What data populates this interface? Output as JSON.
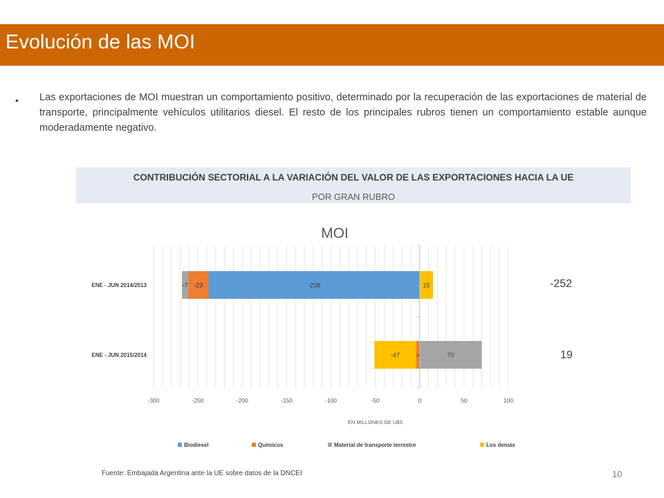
{
  "header": {
    "title": "Evolución de las MOI"
  },
  "body": {
    "bullet": "•",
    "paragraph": "Las exportaciones de MOI muestran un comportamiento positivo, determinado por la recuperación de las exportaciones de material de transporte, principalmente vehículos utilitarios diesel. El resto de los principales rubros tienen un comportamiento estable aunque moderadamente negativo."
  },
  "chart_header": {
    "title": "CONTRIBUCIÓN SECTORIAL A LA VARIACIÓN DEL VALOR DE LAS EXPORTACIONES HACIA LA UE",
    "subtitle": "POR GRAN RUBRO"
  },
  "chart_data": {
    "type": "bar",
    "orientation": "horizontal",
    "stacked": true,
    "title": "MOI",
    "xlabel": "EN MILLONES DE U$S",
    "xlim": [
      -300,
      100
    ],
    "xticks": [
      -300,
      -250,
      -200,
      -150,
      -100,
      -50,
      0,
      50,
      100
    ],
    "grid": true,
    "legend_position": "bottom",
    "categories": [
      "ENE - JUN 2014/2013",
      "ENE - JUN 2015/2014"
    ],
    "series": [
      {
        "name": "Biodiesel",
        "color": "#5b9bd5",
        "values": [
          -238,
          0
        ],
        "labels": [
          "-238",
          ""
        ]
      },
      {
        "name": "Químicos",
        "color": "#ed7d31",
        "values": [
          -23,
          -4
        ],
        "labels": [
          "-23",
          "-4"
        ]
      },
      {
        "name": "Material de transporte terrestre",
        "color": "#a5a5a5",
        "values": [
          -7,
          70
        ],
        "labels": [
          "-7",
          "70"
        ]
      },
      {
        "name": "Los demás",
        "color": "#ffc000",
        "values": [
          15,
          -47
        ],
        "labels": [
          "15",
          "-47"
        ]
      }
    ],
    "totals": [
      "-252",
      "19"
    ]
  },
  "footer": {
    "source": "Fuente: Embajada  Argentina ante la UE sobre datos de la DNCEI",
    "page_number": "10"
  }
}
